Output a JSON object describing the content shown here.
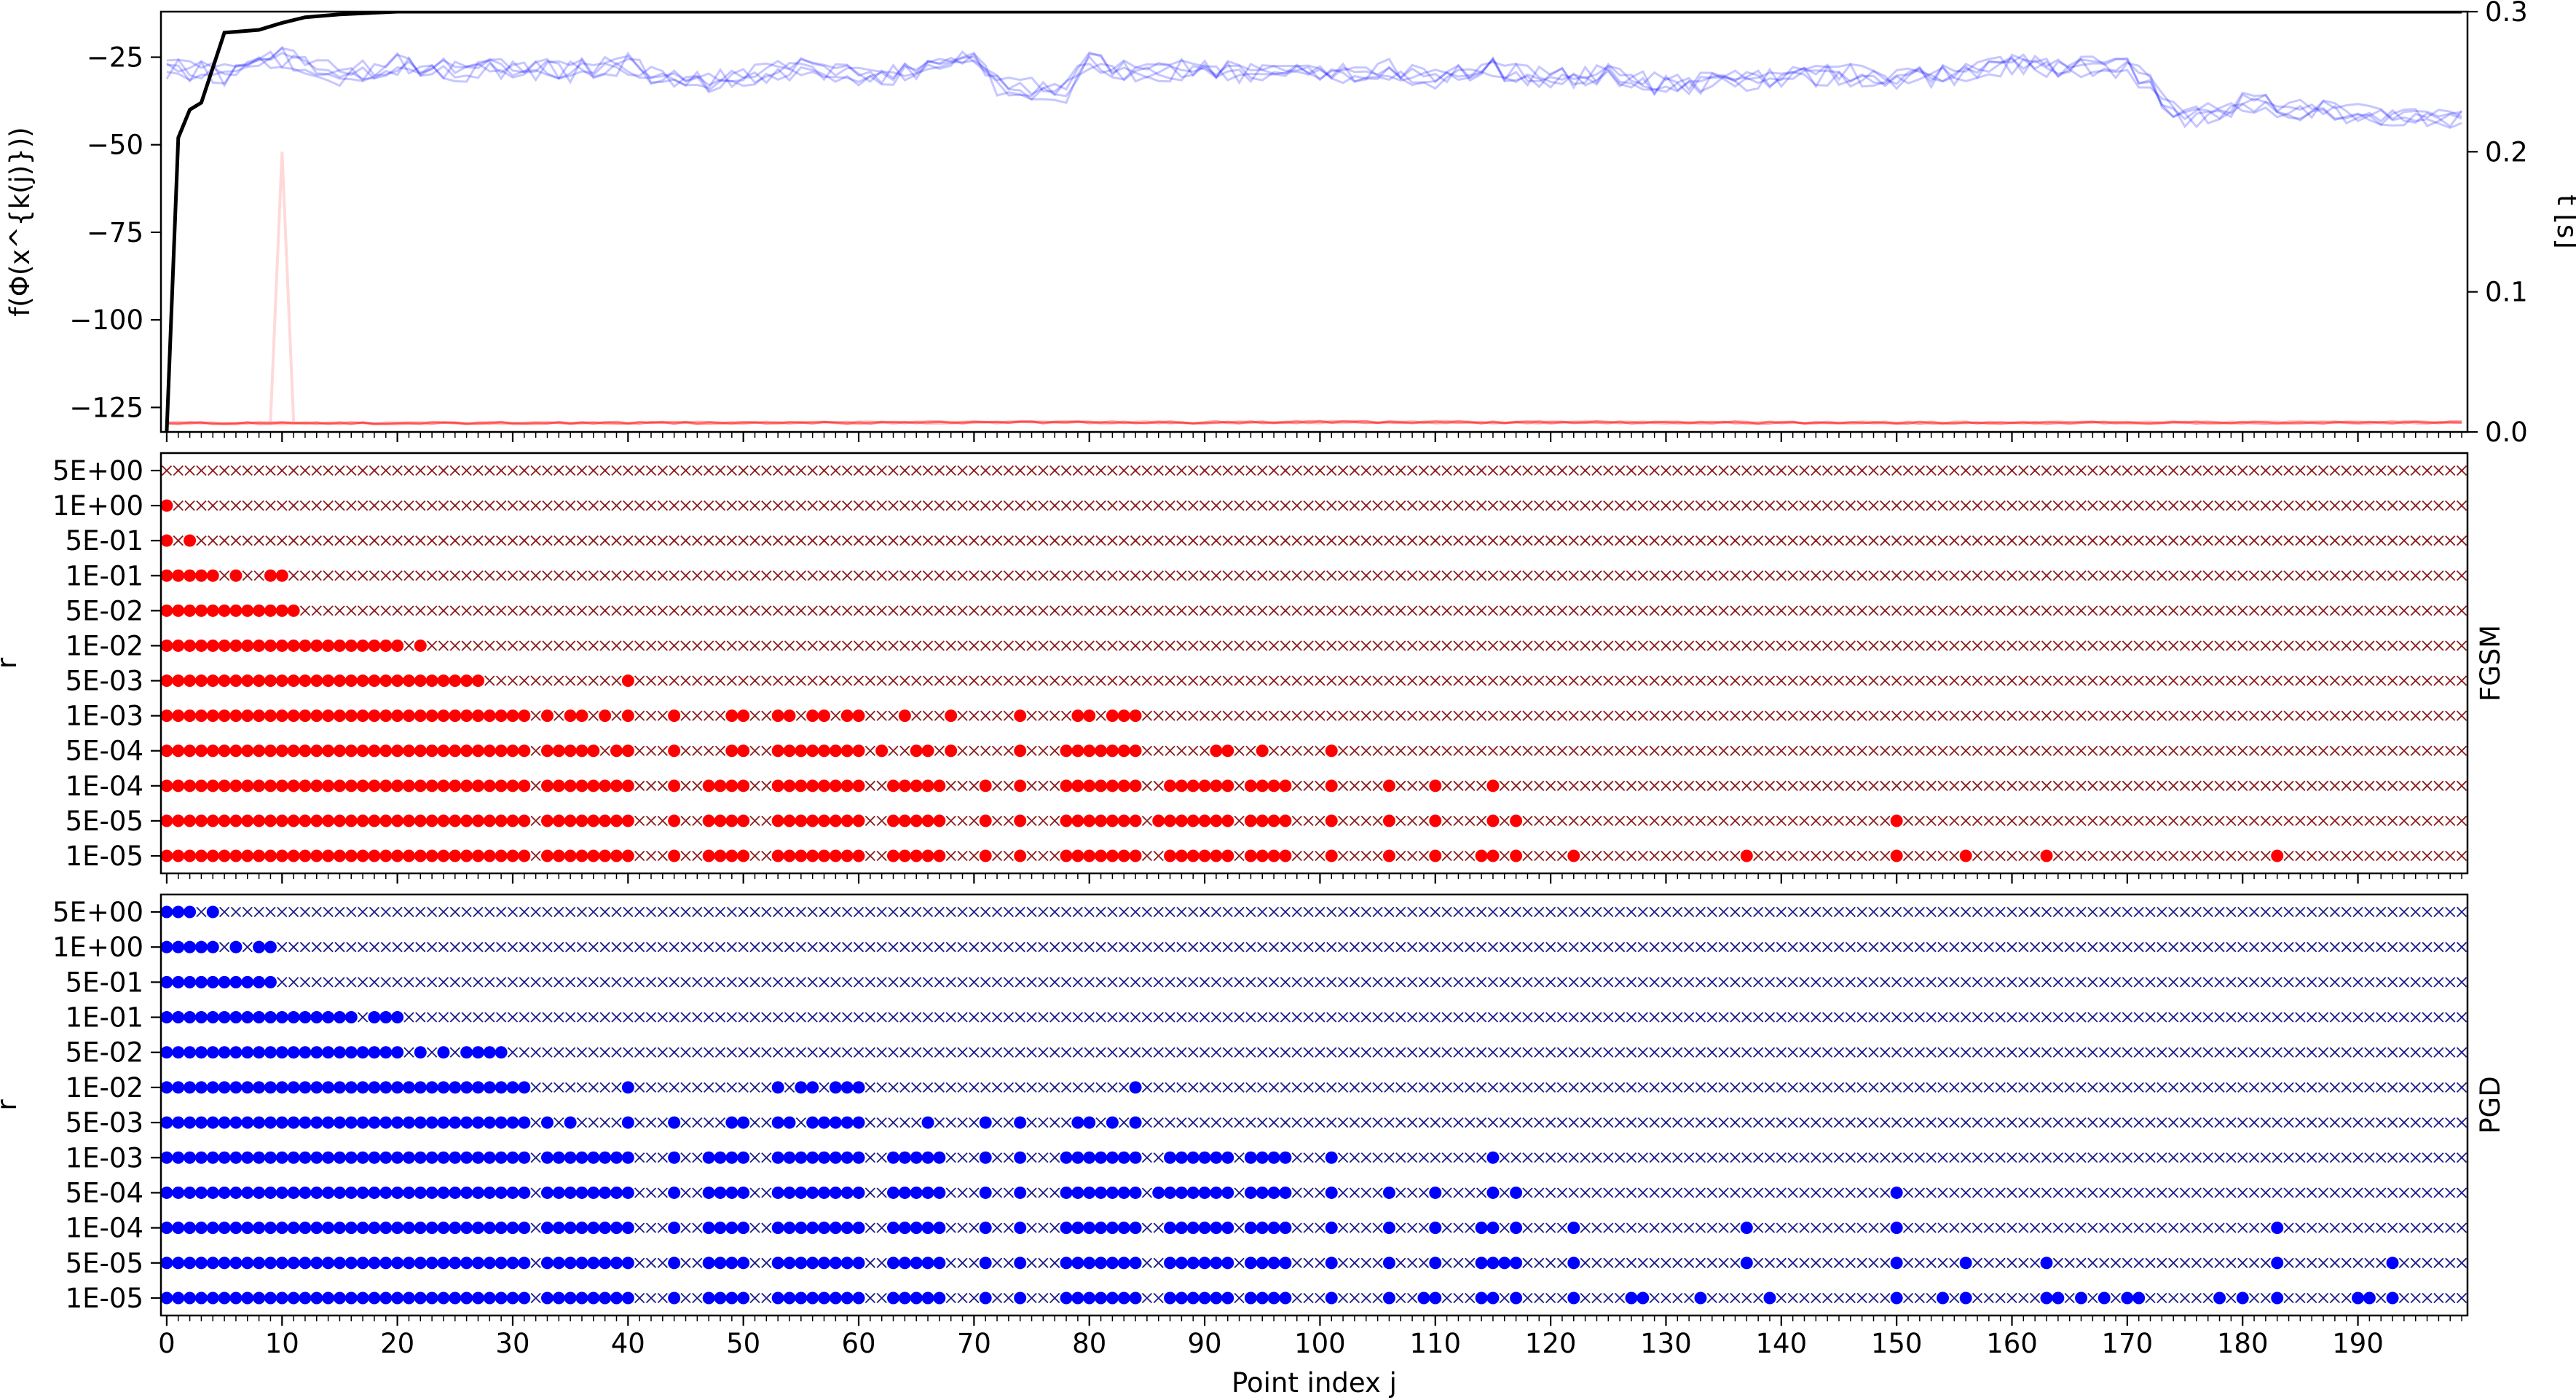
{
  "chart_data": [
    {
      "type": "line",
      "panel": "objective-and-time",
      "ylabel": "f(Φ(x^{k(j)}))",
      "y2label": "t [s]",
      "ylim": [
        -132,
        -12
      ],
      "y2lim": [
        0.0,
        0.3
      ],
      "yticks": [
        -25,
        -50,
        -75,
        -100,
        -125
      ],
      "y2ticks": [
        "0.0",
        "0.1",
        "0.2",
        "0.3"
      ],
      "xlim": [
        -0.5,
        199.5
      ],
      "grid": false,
      "series": [
        {
          "color": "#0000ff",
          "axis": "left",
          "kind": "band of 5 overlaid runs",
          "x": [
            0,
            5,
            10,
            15,
            20,
            25,
            30,
            35,
            40,
            45,
            50,
            55,
            60,
            65,
            70,
            72,
            75,
            78,
            80,
            85,
            90,
            95,
            100,
            105,
            110,
            115,
            120,
            125,
            130,
            135,
            140,
            145,
            150,
            155,
            160,
            165,
            170,
            172,
            175,
            180,
            185,
            190,
            195,
            199
          ],
          "values": [
            -28,
            -30,
            -25,
            -30,
            -27,
            -29,
            -28,
            -29,
            -27,
            -33,
            -30,
            -28,
            -31,
            -29,
            -26,
            -33,
            -34,
            -35,
            -26,
            -30,
            -28,
            -30,
            -30,
            -28,
            -31,
            -28,
            -31,
            -30,
            -33,
            -32,
            -31,
            -30,
            -31,
            -30,
            -27,
            -28,
            -28,
            -33,
            -43,
            -38,
            -40,
            -41,
            -42,
            -42
          ]
        },
        {
          "color": "#ff0000",
          "axis": "left",
          "kind": "band of 5 overlaid runs",
          "x": [
            0,
            50,
            100,
            150,
            199
          ],
          "values": [
            -129.5,
            -129.4,
            -129.2,
            -129.4,
            -129.3
          ]
        },
        {
          "color": "#ff0000",
          "axis": "left",
          "kind": "faint outlier run",
          "x": [
            9,
            10,
            11
          ],
          "values": [
            -129,
            -52,
            -129
          ]
        },
        {
          "color": "#000000",
          "axis": "right",
          "kind": "time",
          "x": [
            0,
            1,
            2,
            3,
            4,
            5,
            8,
            10,
            12,
            15,
            20,
            25,
            30,
            199
          ],
          "values": [
            0.0,
            0.21,
            0.23,
            0.235,
            0.26,
            0.285,
            0.287,
            0.292,
            0.296,
            0.298,
            0.3,
            0.3,
            0.3,
            0.3
          ]
        }
      ]
    },
    {
      "type": "scatter",
      "panel": "FGSM",
      "title_right": "FGSM",
      "ylabel": "r",
      "marker_success": "filled circle",
      "marker_fail": "x",
      "color": "#ff0000",
      "fail_color": "#8b1a1a",
      "r_levels": [
        "5E+00",
        "1E+00",
        "5E-01",
        "1E-01",
        "5E-02",
        "1E-02",
        "5E-03",
        "1E-03",
        "5E-04",
        "1E-04",
        "5E-05",
        "1E-05"
      ],
      "success_ranges": [
        [],
        [
          [
            0,
            0
          ]
        ],
        [
          [
            0,
            0
          ],
          [
            2,
            2
          ]
        ],
        [
          [
            0,
            4
          ],
          [
            6,
            6
          ],
          [
            9,
            10
          ]
        ],
        [
          [
            0,
            11
          ]
        ],
        [
          [
            0,
            20
          ],
          [
            22,
            22
          ]
        ],
        [
          [
            0,
            27
          ],
          [
            40,
            40
          ]
        ],
        [
          [
            0,
            31
          ],
          [
            33,
            33
          ],
          [
            35,
            36
          ],
          [
            38,
            38
          ],
          [
            40,
            40
          ],
          [
            44,
            44
          ],
          [
            49,
            50
          ],
          [
            53,
            54
          ],
          [
            56,
            57
          ],
          [
            59,
            60
          ],
          [
            64,
            64
          ],
          [
            68,
            68
          ],
          [
            74,
            74
          ],
          [
            79,
            80
          ],
          [
            82,
            84
          ]
        ],
        [
          [
            0,
            31
          ],
          [
            33,
            34
          ],
          [
            35,
            37
          ],
          [
            39,
            40
          ],
          [
            44,
            44
          ],
          [
            49,
            50
          ],
          [
            53,
            60
          ],
          [
            62,
            62
          ],
          [
            65,
            66
          ],
          [
            68,
            68
          ],
          [
            74,
            74
          ],
          [
            78,
            84
          ],
          [
            91,
            92
          ],
          [
            95,
            95
          ],
          [
            101,
            101
          ]
        ],
        [
          [
            0,
            31
          ],
          [
            33,
            34
          ],
          [
            35,
            40
          ],
          [
            44,
            44
          ],
          [
            47,
            50
          ],
          [
            53,
            60
          ],
          [
            63,
            67
          ],
          [
            71,
            71
          ],
          [
            74,
            74
          ],
          [
            78,
            84
          ],
          [
            87,
            92
          ],
          [
            94,
            97
          ],
          [
            101,
            101
          ],
          [
            106,
            106
          ],
          [
            110,
            110
          ],
          [
            115,
            115
          ]
        ],
        [
          [
            0,
            31
          ],
          [
            33,
            34
          ],
          [
            35,
            40
          ],
          [
            44,
            44
          ],
          [
            47,
            50
          ],
          [
            53,
            60
          ],
          [
            63,
            67
          ],
          [
            71,
            71
          ],
          [
            74,
            74
          ],
          [
            78,
            84
          ],
          [
            86,
            92
          ],
          [
            94,
            97
          ],
          [
            101,
            101
          ],
          [
            106,
            106
          ],
          [
            110,
            110
          ],
          [
            115,
            115
          ],
          [
            117,
            117
          ],
          [
            150,
            150
          ]
        ],
        [
          [
            0,
            31
          ],
          [
            33,
            34
          ],
          [
            35,
            40
          ],
          [
            44,
            44
          ],
          [
            47,
            50
          ],
          [
            53,
            60
          ],
          [
            63,
            67
          ],
          [
            71,
            71
          ],
          [
            74,
            74
          ],
          [
            78,
            84
          ],
          [
            87,
            92
          ],
          [
            94,
            97
          ],
          [
            101,
            101
          ],
          [
            106,
            106
          ],
          [
            110,
            110
          ],
          [
            114,
            115
          ],
          [
            117,
            117
          ],
          [
            122,
            122
          ],
          [
            137,
            137
          ],
          [
            150,
            150
          ],
          [
            156,
            156
          ],
          [
            163,
            163
          ],
          [
            183,
            183
          ]
        ]
      ]
    },
    {
      "type": "scatter",
      "panel": "PGD",
      "title_right": "PGD",
      "ylabel": "r",
      "xlabel": "Point index j",
      "xticks": [
        0,
        10,
        20,
        30,
        40,
        50,
        60,
        70,
        80,
        90,
        100,
        110,
        120,
        130,
        140,
        150,
        160,
        170,
        180,
        190
      ],
      "marker_success": "filled circle",
      "marker_fail": "x",
      "color": "#0000ff",
      "fail_color": "#1a1a8b",
      "r_levels": [
        "5E+00",
        "1E+00",
        "5E-01",
        "1E-01",
        "5E-02",
        "1E-02",
        "5E-03",
        "1E-03",
        "5E-04",
        "1E-04",
        "5E-05",
        "1E-05"
      ],
      "success_ranges": [
        [
          [
            0,
            2
          ],
          [
            4,
            4
          ]
        ],
        [
          [
            0,
            4
          ],
          [
            6,
            6
          ],
          [
            8,
            9
          ]
        ],
        [
          [
            0,
            9
          ]
        ],
        [
          [
            0,
            16
          ],
          [
            18,
            20
          ]
        ],
        [
          [
            0,
            20
          ],
          [
            22,
            22
          ],
          [
            24,
            24
          ],
          [
            26,
            29
          ]
        ],
        [
          [
            0,
            31
          ],
          [
            40,
            40
          ],
          [
            53,
            53
          ],
          [
            55,
            56
          ],
          [
            58,
            60
          ],
          [
            84,
            84
          ]
        ],
        [
          [
            0,
            31
          ],
          [
            33,
            33
          ],
          [
            35,
            35
          ],
          [
            40,
            40
          ],
          [
            44,
            44
          ],
          [
            49,
            50
          ],
          [
            53,
            54
          ],
          [
            56,
            60
          ],
          [
            66,
            66
          ],
          [
            71,
            71
          ],
          [
            74,
            74
          ],
          [
            79,
            80
          ],
          [
            82,
            82
          ],
          [
            84,
            84
          ]
        ],
        [
          [
            0,
            31
          ],
          [
            33,
            34
          ],
          [
            35,
            40
          ],
          [
            44,
            44
          ],
          [
            47,
            50
          ],
          [
            53,
            60
          ],
          [
            63,
            67
          ],
          [
            71,
            71
          ],
          [
            74,
            74
          ],
          [
            78,
            84
          ],
          [
            87,
            92
          ],
          [
            94,
            97
          ],
          [
            101,
            101
          ],
          [
            115,
            115
          ]
        ],
        [
          [
            0,
            31
          ],
          [
            33,
            34
          ],
          [
            35,
            40
          ],
          [
            44,
            44
          ],
          [
            47,
            50
          ],
          [
            53,
            60
          ],
          [
            63,
            67
          ],
          [
            71,
            71
          ],
          [
            74,
            74
          ],
          [
            78,
            84
          ],
          [
            86,
            92
          ],
          [
            94,
            97
          ],
          [
            101,
            101
          ],
          [
            106,
            106
          ],
          [
            110,
            110
          ],
          [
            115,
            115
          ],
          [
            117,
            117
          ],
          [
            150,
            150
          ]
        ],
        [
          [
            0,
            31
          ],
          [
            33,
            34
          ],
          [
            35,
            40
          ],
          [
            44,
            44
          ],
          [
            47,
            50
          ],
          [
            53,
            60
          ],
          [
            63,
            67
          ],
          [
            71,
            71
          ],
          [
            74,
            74
          ],
          [
            78,
            84
          ],
          [
            87,
            92
          ],
          [
            94,
            97
          ],
          [
            101,
            101
          ],
          [
            106,
            106
          ],
          [
            110,
            110
          ],
          [
            114,
            115
          ],
          [
            117,
            117
          ],
          [
            122,
            122
          ],
          [
            137,
            137
          ],
          [
            150,
            150
          ],
          [
            183,
            183
          ]
        ],
        [
          [
            0,
            31
          ],
          [
            33,
            34
          ],
          [
            35,
            40
          ],
          [
            44,
            44
          ],
          [
            47,
            50
          ],
          [
            53,
            60
          ],
          [
            63,
            67
          ],
          [
            71,
            71
          ],
          [
            74,
            74
          ],
          [
            78,
            84
          ],
          [
            87,
            92
          ],
          [
            94,
            97
          ],
          [
            101,
            101
          ],
          [
            106,
            106
          ],
          [
            110,
            110
          ],
          [
            114,
            117
          ],
          [
            122,
            122
          ],
          [
            137,
            137
          ],
          [
            150,
            150
          ],
          [
            156,
            156
          ],
          [
            163,
            163
          ],
          [
            183,
            183
          ],
          [
            193,
            193
          ]
        ],
        [
          [
            0,
            31
          ],
          [
            33,
            34
          ],
          [
            35,
            40
          ],
          [
            44,
            44
          ],
          [
            47,
            50
          ],
          [
            53,
            60
          ],
          [
            63,
            67
          ],
          [
            71,
            71
          ],
          [
            74,
            74
          ],
          [
            78,
            84
          ],
          [
            87,
            92
          ],
          [
            94,
            97
          ],
          [
            101,
            101
          ],
          [
            106,
            106
          ],
          [
            109,
            110
          ],
          [
            114,
            115
          ],
          [
            117,
            117
          ],
          [
            122,
            122
          ],
          [
            127,
            128
          ],
          [
            133,
            133
          ],
          [
            139,
            139
          ],
          [
            150,
            150
          ],
          [
            154,
            154
          ],
          [
            156,
            156
          ],
          [
            163,
            164
          ],
          [
            166,
            166
          ],
          [
            168,
            168
          ],
          [
            170,
            171
          ],
          [
            178,
            178
          ],
          [
            180,
            180
          ],
          [
            183,
            183
          ],
          [
            190,
            191
          ],
          [
            193,
            193
          ]
        ]
      ]
    }
  ]
}
